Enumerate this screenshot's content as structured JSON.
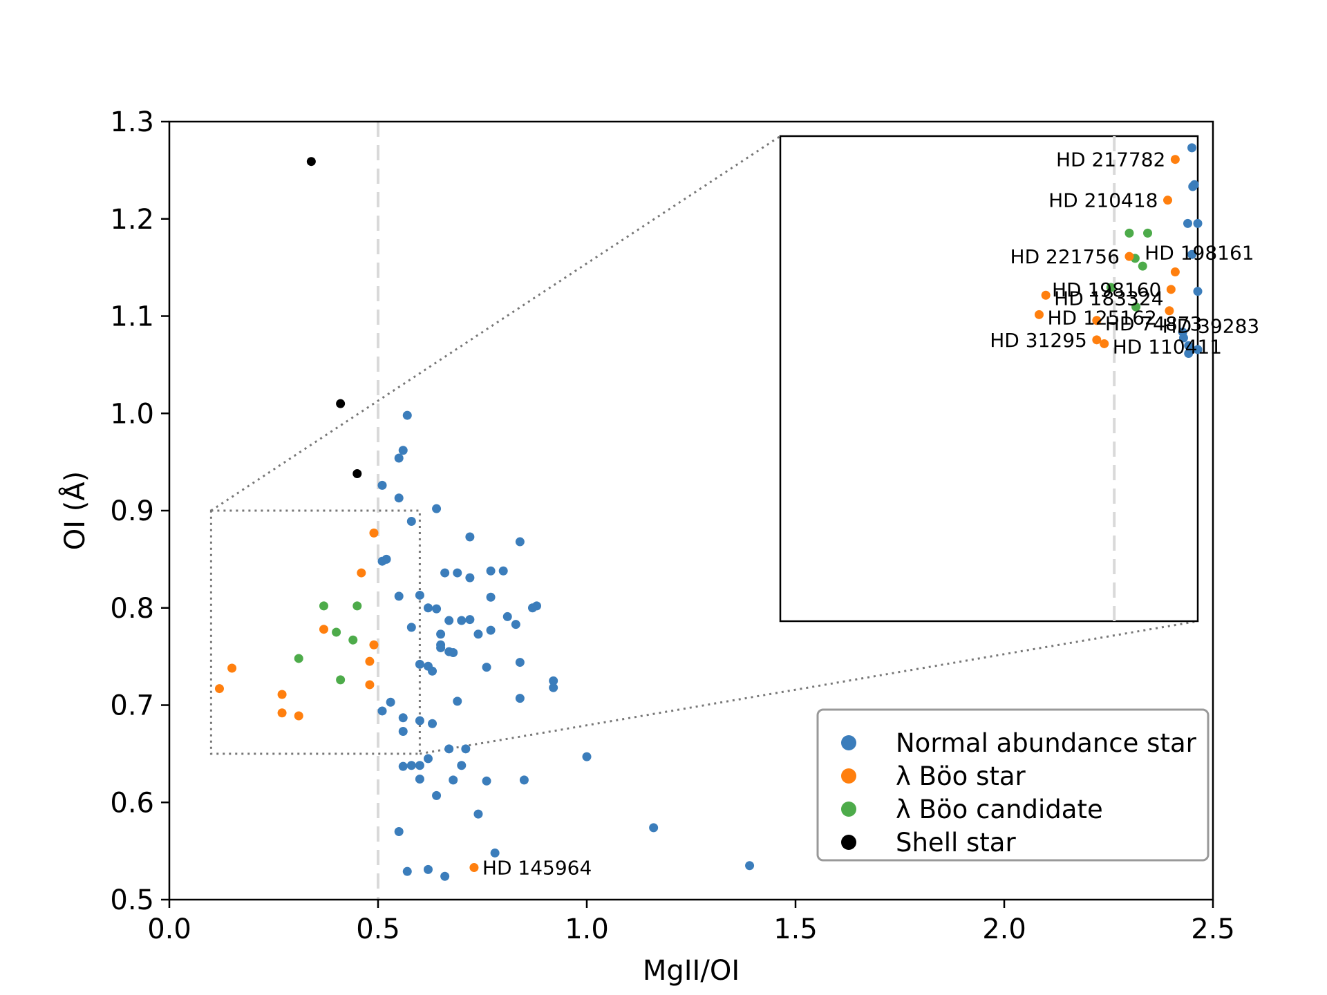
{
  "chart_data": {
    "type": "scatter",
    "title": "",
    "xlabel": "MgII/OI",
    "ylabel": "OI (Å)",
    "xlim": [
      0.0,
      2.5
    ],
    "ylim": [
      0.5,
      1.3
    ],
    "xticks": [
      "0.0",
      "0.5",
      "1.0",
      "1.5",
      "2.0",
      "2.5"
    ],
    "yticks": [
      "0.5",
      "0.6",
      "0.7",
      "0.8",
      "0.9",
      "1.0",
      "1.1",
      "1.2",
      "1.3"
    ],
    "grid": false,
    "legend_position": "bottom-right",
    "reference_line": {
      "x": 0.5,
      "style": "dashed",
      "color": "#d9d9d9"
    },
    "zoom_region": {
      "xlim": [
        0.1,
        0.6
      ],
      "ylim": [
        0.65,
        0.9
      ]
    },
    "series": [
      {
        "name": "Normal abundance star",
        "color": "#3b7dbb",
        "points": [
          [
            0.57,
            0.998
          ],
          [
            0.56,
            0.962
          ],
          [
            0.55,
            0.954
          ],
          [
            0.51,
            0.926
          ],
          [
            0.55,
            0.913
          ],
          [
            0.64,
            0.902
          ],
          [
            0.58,
            0.889
          ],
          [
            0.72,
            0.873
          ],
          [
            0.84,
            0.868
          ],
          [
            0.51,
            0.848
          ],
          [
            0.52,
            0.85
          ],
          [
            0.66,
            0.836
          ],
          [
            0.69,
            0.836
          ],
          [
            0.77,
            0.838
          ],
          [
            0.8,
            0.838
          ],
          [
            0.72,
            0.831
          ],
          [
            0.55,
            0.812
          ],
          [
            0.6,
            0.813
          ],
          [
            0.77,
            0.811
          ],
          [
            0.62,
            0.8
          ],
          [
            0.64,
            0.799
          ],
          [
            0.88,
            0.802
          ],
          [
            0.87,
            0.8
          ],
          [
            0.81,
            0.791
          ],
          [
            0.67,
            0.787
          ],
          [
            0.7,
            0.787
          ],
          [
            0.72,
            0.788
          ],
          [
            0.83,
            0.783
          ],
          [
            0.58,
            0.78
          ],
          [
            0.77,
            0.777
          ],
          [
            0.65,
            0.773
          ],
          [
            0.74,
            0.773
          ],
          [
            0.65,
            0.762
          ],
          [
            0.65,
            0.759
          ],
          [
            0.67,
            0.755
          ],
          [
            0.68,
            0.754
          ],
          [
            0.84,
            0.744
          ],
          [
            0.6,
            0.742
          ],
          [
            0.62,
            0.74
          ],
          [
            0.63,
            0.735
          ],
          [
            0.76,
            0.739
          ],
          [
            0.92,
            0.725
          ],
          [
            0.92,
            0.718
          ],
          [
            0.69,
            0.704
          ],
          [
            0.84,
            0.707
          ],
          [
            0.53,
            0.703
          ],
          [
            0.51,
            0.694
          ],
          [
            0.56,
            0.687
          ],
          [
            0.6,
            0.684
          ],
          [
            0.63,
            0.681
          ],
          [
            0.56,
            0.673
          ],
          [
            0.67,
            0.655
          ],
          [
            0.71,
            0.655
          ],
          [
            1.0,
            0.647
          ],
          [
            0.62,
            0.645
          ],
          [
            0.56,
            0.637
          ],
          [
            0.58,
            0.638
          ],
          [
            0.6,
            0.638
          ],
          [
            0.7,
            0.638
          ],
          [
            0.6,
            0.624
          ],
          [
            0.68,
            0.623
          ],
          [
            0.76,
            0.622
          ],
          [
            0.85,
            0.623
          ],
          [
            0.64,
            0.607
          ],
          [
            0.74,
            0.588
          ],
          [
            1.16,
            0.574
          ],
          [
            0.55,
            0.57
          ],
          [
            0.78,
            0.548
          ],
          [
            1.39,
            0.535
          ],
          [
            0.57,
            0.529
          ],
          [
            0.62,
            0.531
          ],
          [
            0.66,
            0.524
          ]
        ]
      },
      {
        "name": "λ Böo star",
        "color": "#ff7f0e",
        "points": [
          [
            0.49,
            0.877
          ],
          [
            0.46,
            0.836
          ],
          [
            0.37,
            0.778
          ],
          [
            0.49,
            0.762
          ],
          [
            0.48,
            0.745
          ],
          [
            0.15,
            0.738
          ],
          [
            0.48,
            0.721
          ],
          [
            0.12,
            0.717
          ],
          [
            0.27,
            0.711
          ],
          [
            0.27,
            0.692
          ],
          [
            0.31,
            0.689
          ],
          [
            0.73,
            0.533
          ]
        ]
      },
      {
        "name": "λ Böo candidate",
        "color": "#4dab4a",
        "points": [
          [
            0.37,
            0.802
          ],
          [
            0.45,
            0.802
          ],
          [
            0.4,
            0.775
          ],
          [
            0.44,
            0.767
          ],
          [
            0.31,
            0.748
          ],
          [
            0.41,
            0.726
          ]
        ]
      },
      {
        "name": "Shell star",
        "color": "#000000",
        "points": [
          [
            0.34,
            1.259
          ],
          [
            0.41,
            1.01
          ],
          [
            0.45,
            0.938
          ]
        ]
      }
    ],
    "annotations": [
      {
        "text": "HD 145964",
        "x": 0.73,
        "y": 0.533,
        "anchor": "right"
      }
    ],
    "inset": {
      "annotations": [
        {
          "text": "HD 217782",
          "x": 0.573,
          "y": 0.888,
          "anchor": "left"
        },
        {
          "text": "HD 210418",
          "x": 0.564,
          "y": 0.867,
          "anchor": "left"
        },
        {
          "text": "HD 221756",
          "x": 0.518,
          "y": 0.838,
          "anchor": "left"
        },
        {
          "text": "HD 198161",
          "x": 0.573,
          "y": 0.83,
          "anchor": "top"
        },
        {
          "text": "HD 198160",
          "x": 0.568,
          "y": 0.821,
          "anchor": "left"
        },
        {
          "text": "HD 183324",
          "x": 0.418,
          "y": 0.818,
          "anchor": "right"
        },
        {
          "text": "HD 125162",
          "x": 0.41,
          "y": 0.808,
          "anchor": "right"
        },
        {
          "text": "HD 74873",
          "x": 0.479,
          "y": 0.805,
          "anchor": "right"
        },
        {
          "text": "HD 39283",
          "x": 0.566,
          "y": 0.81,
          "anchor": "bottom"
        },
        {
          "text": "HD 31295",
          "x": 0.479,
          "y": 0.795,
          "anchor": "left"
        },
        {
          "text": "HD 110411",
          "x": 0.488,
          "y": 0.793,
          "anchor": "right"
        }
      ],
      "orange": [
        [
          0.573,
          0.888
        ],
        [
          0.564,
          0.867
        ],
        [
          0.518,
          0.838
        ],
        [
          0.573,
          0.83
        ],
        [
          0.568,
          0.821
        ],
        [
          0.418,
          0.818
        ],
        [
          0.41,
          0.808
        ],
        [
          0.479,
          0.805
        ],
        [
          0.566,
          0.81
        ],
        [
          0.479,
          0.795
        ],
        [
          0.488,
          0.793
        ]
      ],
      "green": [
        [
          0.518,
          0.85
        ],
        [
          0.54,
          0.85
        ],
        [
          0.525,
          0.837
        ],
        [
          0.534,
          0.833
        ],
        [
          0.496,
          0.822
        ],
        [
          0.526,
          0.812
        ]
      ],
      "blue": [
        [
          0.593,
          0.894
        ],
        [
          0.596,
          0.875
        ],
        [
          0.594,
          0.874
        ],
        [
          0.588,
          0.855
        ],
        [
          0.6,
          0.855
        ],
        [
          0.593,
          0.839
        ],
        [
          0.6,
          0.82
        ],
        [
          0.582,
          0.799
        ],
        [
          0.583,
          0.796
        ],
        [
          0.589,
          0.792
        ],
        [
          0.589,
          0.788
        ],
        [
          0.6,
          0.79
        ]
      ]
    }
  }
}
